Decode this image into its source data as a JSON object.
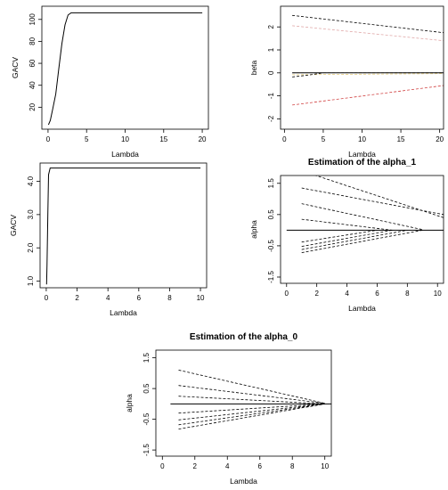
{
  "chart_data": [
    {
      "type": "line",
      "title": "",
      "xlabel": "Lambda",
      "ylabel": "GACV",
      "xlim": [
        -0.8,
        20.8
      ],
      "ylim": [
        0,
        112
      ],
      "xticks": [
        0,
        5,
        10,
        15,
        20
      ],
      "yticks": [
        20,
        40,
        60,
        80,
        100
      ],
      "grid": false,
      "series": [
        {
          "style": "solid",
          "color": "#000000",
          "x": [
            0.05,
            0.3,
            0.6,
            1.0,
            1.4,
            1.8,
            2.2,
            2.6,
            3.0,
            5,
            10,
            15,
            20
          ],
          "y": [
            4,
            8,
            18,
            32,
            55,
            78,
            95,
            104,
            106,
            106,
            106,
            106,
            106
          ]
        }
      ]
    },
    {
      "type": "line",
      "title": "",
      "xlabel": "Lambda",
      "ylabel": "beta",
      "xlim": [
        -0.5,
        20.5
      ],
      "ylim": [
        -2.45,
        2.9
      ],
      "xticks": [
        0,
        5,
        10,
        15,
        20
      ],
      "yticks": [
        -2,
        -1,
        0,
        1,
        2
      ],
      "grid": false,
      "series": [
        {
          "style": "dashed",
          "color": "#000000",
          "x": [
            1,
            20.5
          ],
          "y": [
            2.5,
            1.75
          ]
        },
        {
          "style": "dashed",
          "color": "#e0a8a8",
          "x": [
            1,
            20.5
          ],
          "y": [
            2.05,
            1.4
          ]
        },
        {
          "style": "dashed",
          "color": "#c8c8c8",
          "x": [
            1,
            20.5
          ],
          "y": [
            0.0,
            0.02
          ]
        },
        {
          "style": "dashed",
          "color": "#e8d080",
          "x": [
            1,
            20.5
          ],
          "y": [
            -0.08,
            -0.03
          ]
        },
        {
          "style": "dashed",
          "color": "#000000",
          "x": [
            1,
            3,
            5
          ],
          "y": [
            -0.18,
            -0.1,
            0.0
          ]
        },
        {
          "style": "dashed",
          "color": "#d04040",
          "x": [
            1,
            20.5
          ],
          "y": [
            -1.4,
            -0.55
          ]
        },
        {
          "style": "solid",
          "color": "#000000",
          "x": [
            1,
            20.5
          ],
          "y": [
            0,
            0
          ]
        }
      ]
    },
    {
      "type": "line",
      "title": "",
      "xlabel": "Lambda",
      "ylabel": "GACV",
      "xlim": [
        -0.4,
        10.4
      ],
      "ylim": [
        0.8,
        4.55
      ],
      "xticks": [
        0,
        2,
        4,
        6,
        8,
        10
      ],
      "yticks": [
        1.0,
        2.0,
        3.0,
        4.0
      ],
      "yticklabels": [
        "1.0",
        "2.0",
        "3.0",
        "4.0"
      ],
      "grid": false,
      "series": [
        {
          "style": "solid",
          "color": "#000000",
          "x": [
            0.02,
            0.05,
            0.1,
            0.15,
            0.25,
            0.5,
            2,
            4,
            6,
            8,
            10
          ],
          "y": [
            0.9,
            1.5,
            3.0,
            4.2,
            4.4,
            4.4,
            4.4,
            4.4,
            4.4,
            4.4,
            4.4
          ]
        }
      ]
    },
    {
      "type": "line",
      "title": "Estimation of the alpha_1",
      "xlabel": "Lambda",
      "ylabel": "alpha",
      "xlim": [
        -0.4,
        10.4
      ],
      "ylim": [
        -1.7,
        1.75
      ],
      "xticks": [
        0,
        2,
        4,
        6,
        8,
        10
      ],
      "yticks": [
        -1.5,
        -0.5,
        0.5,
        1.5
      ],
      "grid": false,
      "series": [
        {
          "style": "dashed",
          "color": "#000000",
          "x": [
            1,
            10.4
          ],
          "y": [
            1.9,
            0.4
          ]
        },
        {
          "style": "dashed",
          "color": "#000000",
          "x": [
            1,
            10.4
          ],
          "y": [
            1.35,
            0.5
          ]
        },
        {
          "style": "dashed",
          "color": "#000000",
          "x": [
            1,
            9
          ],
          "y": [
            0.85,
            0.02
          ]
        },
        {
          "style": "dashed",
          "color": "#000000",
          "x": [
            1,
            7
          ],
          "y": [
            0.35,
            0.0
          ]
        },
        {
          "style": "dashed",
          "color": "#000000",
          "x": [
            1,
            6
          ],
          "y": [
            -0.38,
            0.0
          ]
        },
        {
          "style": "dashed",
          "color": "#000000",
          "x": [
            1,
            7
          ],
          "y": [
            -0.52,
            0.0
          ]
        },
        {
          "style": "dashed",
          "color": "#000000",
          "x": [
            1,
            8
          ],
          "y": [
            -0.62,
            0.0
          ]
        },
        {
          "style": "dashed",
          "color": "#000000",
          "x": [
            1,
            9
          ],
          "y": [
            -0.72,
            0.0
          ]
        },
        {
          "style": "solid",
          "color": "#000000",
          "x": [
            0,
            10.4
          ],
          "y": [
            0,
            0
          ]
        }
      ]
    },
    {
      "type": "line",
      "title": "Estimation of the alpha_0",
      "xlabel": "Lambda",
      "ylabel": "alpha",
      "xlim": [
        -0.4,
        10.4
      ],
      "ylim": [
        -1.7,
        1.75
      ],
      "xticks": [
        0,
        2,
        4,
        6,
        8,
        10
      ],
      "yticks": [
        -1.5,
        -0.5,
        0.5,
        1.5
      ],
      "grid": false,
      "series": [
        {
          "style": "dashed",
          "color": "#000000",
          "x": [
            1,
            10
          ],
          "y": [
            1.1,
            0.02
          ]
        },
        {
          "style": "dashed",
          "color": "#000000",
          "x": [
            1,
            10
          ],
          "y": [
            0.6,
            0.02
          ]
        },
        {
          "style": "dashed",
          "color": "#000000",
          "x": [
            1,
            10
          ],
          "y": [
            0.25,
            0.0
          ]
        },
        {
          "style": "dashed",
          "color": "#000000",
          "x": [
            1,
            10
          ],
          "y": [
            -0.3,
            0.0
          ]
        },
        {
          "style": "dashed",
          "color": "#000000",
          "x": [
            1,
            10
          ],
          "y": [
            -0.52,
            0.0
          ]
        },
        {
          "style": "dashed",
          "color": "#000000",
          "x": [
            1,
            10
          ],
          "y": [
            -0.68,
            0.0
          ]
        },
        {
          "style": "dashed",
          "color": "#000000",
          "x": [
            1,
            10
          ],
          "y": [
            -0.82,
            0.0
          ]
        },
        {
          "style": "solid",
          "color": "#000000",
          "x": [
            0.5,
            10.4
          ],
          "y": [
            0,
            0
          ]
        }
      ]
    }
  ]
}
